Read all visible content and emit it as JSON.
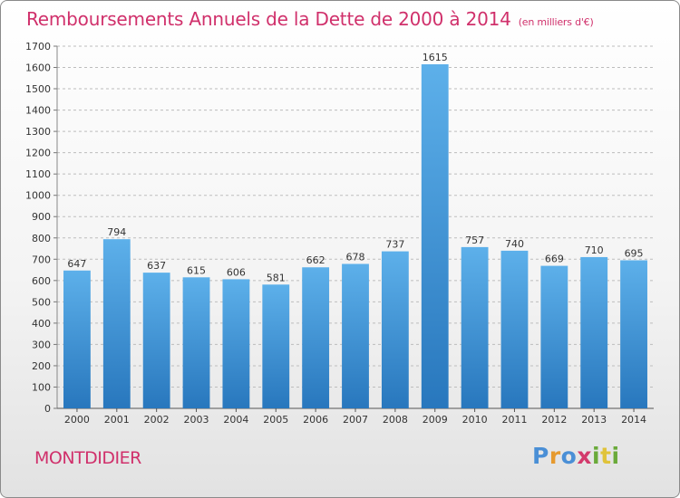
{
  "page": {
    "title": "Remboursements Annuels de la Dette de 2000 à 2014",
    "unit": "(en milliers d'€)",
    "city": "MONTDIDIER",
    "logo": [
      "P",
      "r",
      "o",
      "x",
      "i",
      "t",
      "i"
    ],
    "logo_colors": [
      "#4a8fd6",
      "#e69a2e",
      "#4a8fd6",
      "#d33a6c",
      "#6aaa3a",
      "#e0c33a",
      "#6aaa3a"
    ]
  },
  "colors": {
    "title": "#d0306b",
    "bar_top": "#5db0ea",
    "bar_bottom": "#2877bd",
    "grid": "#bdbdbd"
  },
  "chart_data": {
    "type": "bar",
    "title": "Remboursements Annuels de la Dette de 2000 à 2014",
    "ylabel": "(en milliers d'€)",
    "categories": [
      "2000",
      "2001",
      "2002",
      "2003",
      "2004",
      "2005",
      "2006",
      "2007",
      "2008",
      "2009",
      "2010",
      "2011",
      "2012",
      "2013",
      "2014"
    ],
    "values": [
      647,
      794,
      637,
      615,
      606,
      581,
      662,
      678,
      737,
      1615,
      757,
      740,
      669,
      710,
      695
    ],
    "ylim": [
      0,
      1700
    ],
    "yticks": [
      0,
      100,
      200,
      300,
      400,
      500,
      600,
      700,
      800,
      900,
      1000,
      1100,
      1200,
      1300,
      1400,
      1500,
      1600,
      1700
    ],
    "grid": true,
    "legend": "none"
  }
}
